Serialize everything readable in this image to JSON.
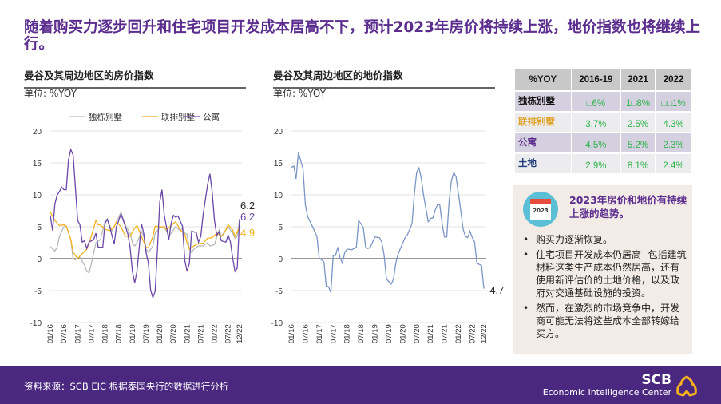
{
  "title": "随着购买力逐步回升和住宅项目开发成本居高不下，预计2023年房价将持续上涨，地价指数也将继续上行。",
  "chart_data": [
    {
      "type": "line",
      "title": "曼谷及其周边地区的房价指数",
      "unit": "单位: %YOY",
      "ylim": [
        -10,
        20
      ],
      "yticks": [
        20,
        15,
        10,
        5,
        0,
        -5,
        -10
      ],
      "xticks": [
        "01/16",
        "07/16",
        "01/17",
        "07/17",
        "01/18",
        "07/18",
        "01/19",
        "07/19",
        "01/20",
        "07/20",
        "01/21",
        "07/21",
        "01/22",
        "07/22",
        "12/22"
      ],
      "legend": "top",
      "grid": true,
      "series": [
        {
          "name": "独栋别墅",
          "color": "#b8b8b8",
          "end_label": "6.2",
          "x": [
            "01/16",
            "03/16",
            "04/16",
            "05/16",
            "07/16",
            "08/16",
            "10/16",
            "11/16",
            "12/16",
            "01/17",
            "02/17",
            "04/17",
            "05/17",
            "06/17",
            "07/17",
            "09/17",
            "11/17",
            "01/18",
            "02/18",
            "04/18",
            "06/18",
            "08/18",
            "10/18",
            "12/18",
            "01/19",
            "02/19",
            "03/19",
            "05/19",
            "06/19",
            "07/19",
            "08/19",
            "10/19",
            "11/19",
            "01/20",
            "03/20",
            "05/20",
            "06/20",
            "08/20",
            "10/20",
            "11/20",
            "12/20",
            "01/21",
            "02/21",
            "03/21",
            "04/21",
            "06/21",
            "08/21",
            "10/21",
            "11/21",
            "01/22",
            "03/22",
            "04/22",
            "05/22",
            "07/22",
            "09/22",
            "10/22",
            "11/22",
            "12/22"
          ],
          "values": [
            1.9,
            1.2,
            1.8,
            3.5,
            5,
            5.2,
            3,
            0,
            -0.2,
            0.2,
            0.2,
            -1,
            -2,
            -2.2,
            -0.8,
            2.5,
            3,
            5.8,
            6.2,
            4.3,
            5.7,
            7.3,
            5.2,
            4,
            2.5,
            2,
            2.5,
            4.2,
            3.5,
            1.5,
            1,
            2,
            4,
            4.8,
            5,
            3.5,
            4,
            5,
            4.4,
            4.8,
            4,
            3.8,
            1.5,
            1,
            1.5,
            2,
            2,
            2.5,
            2,
            2.2,
            4.5,
            3.5,
            4,
            5,
            4,
            3.2,
            3.5,
            6.2
          ]
        },
        {
          "name": "联排别墅",
          "color": "#f5b21d",
          "end_label": "4.9",
          "x": [
            "01/16",
            "03/16",
            "05/16",
            "07/16",
            "08/16",
            "10/16",
            "11/16",
            "01/17",
            "03/17",
            "05/17",
            "07/17",
            "09/17",
            "10/17",
            "11/17",
            "01/18",
            "03/18",
            "05/18",
            "06/18",
            "08/18",
            "10/18",
            "12/18",
            "02/19",
            "03/19",
            "05/19",
            "07/19",
            "08/19",
            "10/19",
            "11/19",
            "01/20",
            "03/20",
            "04/20",
            "06/20",
            "08/20",
            "10/20",
            "12/20",
            "01/21",
            "02/21",
            "04/21",
            "06/21",
            "08/21",
            "10/21",
            "12/21",
            "02/22",
            "04/22",
            "05/22",
            "07/22",
            "09/22",
            "10/22",
            "12/22"
          ],
          "values": [
            7.3,
            6,
            5.2,
            5.3,
            5.1,
            3,
            1,
            0,
            0.8,
            1.5,
            3.5,
            6,
            5.3,
            5.3,
            4.6,
            4.4,
            5,
            5.8,
            5,
            3.5,
            3.5,
            4.8,
            5.2,
            3.5,
            1.8,
            1.7,
            3.5,
            5.1,
            5,
            5,
            4.5,
            5.2,
            5.8,
            4.5,
            3.8,
            2.5,
            1.5,
            2,
            2.4,
            2.4,
            3.2,
            3.3,
            4,
            3.5,
            3.8,
            5.3,
            4.5,
            3.5,
            4.9
          ]
        },
        {
          "name": "公寓",
          "color": "#6b47a8",
          "end_label": "6.2",
          "x": [
            "01/16",
            "02/16",
            "03/16",
            "04/16",
            "05/16",
            "06/16",
            "07/16",
            "08/16",
            "09/16",
            "10/16",
            "11/16",
            "01/17",
            "02/17",
            "03/17",
            "04/17",
            "05/17",
            "06/17",
            "08/17",
            "09/17",
            "10/17",
            "12/17",
            "01/18",
            "02/18",
            "03/18",
            "05/18",
            "06/18",
            "08/18",
            "09/18",
            "11/18",
            "12/18",
            "01/19",
            "02/19",
            "03/19",
            "04/19",
            "05/19",
            "06/19",
            "07/19",
            "08/19",
            "09/19",
            "10/19",
            "11/19",
            "12/19",
            "01/20",
            "02/20",
            "03/20",
            "05/20",
            "06/20",
            "07/20",
            "08/20",
            "09/20",
            "11/20",
            "12/20",
            "01/21",
            "02/21",
            "03/21",
            "05/21",
            "06/21",
            "07/21",
            "08/21",
            "10/21",
            "11/21",
            "12/21",
            "01/22",
            "02/22",
            "03/22",
            "04/22",
            "06/22",
            "07/22",
            "08/22",
            "09/22",
            "10/22",
            "11/22",
            "12/22"
          ],
          "values": [
            6.8,
            4.4,
            8.5,
            10,
            10.5,
            11.2,
            10.8,
            10.8,
            15.5,
            17.1,
            16.2,
            6,
            5.3,
            2.6,
            2.8,
            1.6,
            2.6,
            3,
            4,
            1.8,
            1.8,
            5.5,
            6.2,
            5.1,
            2.3,
            5,
            7,
            6,
            3.9,
            1.8,
            -2,
            -3.8,
            -2,
            1.8,
            5.5,
            3.9,
            1,
            -0.7,
            -4.9,
            -6.1,
            -5.1,
            1.4,
            8.9,
            10.8,
            6.8,
            3,
            5.5,
            6.8,
            6.5,
            6.7,
            5.1,
            -0.3,
            -2,
            -0.7,
            4.3,
            4.1,
            2.6,
            3.5,
            6.8,
            11.6,
            13.3,
            10.5,
            6,
            3.7,
            4.2,
            2.8,
            2.6,
            3.7,
            2.6,
            0.1,
            -2,
            -1.5,
            6.2
          ]
        }
      ]
    },
    {
      "type": "line",
      "title": "曼谷及其周边地区的地价指数",
      "unit": "单位: %YOY",
      "ylim": [
        -10,
        20
      ],
      "yticks": [
        20,
        15,
        10,
        5,
        0,
        -5,
        -10
      ],
      "xticks": [
        "01/16",
        "07/16",
        "01/17",
        "07/17",
        "01/18",
        "07/18",
        "01/19",
        "07/19",
        "01/20",
        "07/20",
        "01/21",
        "07/21",
        "01/22",
        "07/22",
        "12/22"
      ],
      "grid": true,
      "series": [
        {
          "color": "#7b96c6",
          "end_label": "-4.7",
          "x": [
            "01/16",
            "02/16",
            "03/16",
            "04/16",
            "06/16",
            "07/16",
            "08/16",
            "10/16",
            "12/16",
            "01/17",
            "03/17",
            "04/17",
            "05/17",
            "06/17",
            "07/17",
            "08/17",
            "09/17",
            "10/17",
            "11/17",
            "12/17",
            "01/18",
            "03/18",
            "05/18",
            "06/18",
            "08/18",
            "09/18",
            "10/18",
            "11/18",
            "01/19",
            "03/19",
            "04/19",
            "05/19",
            "06/19",
            "08/19",
            "09/19",
            "10/19",
            "11/19",
            "12/19",
            "02/20",
            "03/20",
            "05/20",
            "06/20",
            "07/20",
            "08/20",
            "09/20",
            "10/20",
            "12/20",
            "01/21",
            "02/21",
            "03/21",
            "04/21",
            "05/21",
            "06/21",
            "07/21",
            "08/21",
            "09/21",
            "10/21",
            "11/21",
            "12/21",
            "02/22",
            "03/22",
            "04/22",
            "05/22",
            "06/22",
            "07/22",
            "08/22",
            "09/22",
            "11/22",
            "12/22"
          ],
          "values": [
            14.3,
            14.5,
            12.5,
            16.6,
            14.1,
            8.5,
            6.6,
            5.1,
            3.5,
            0.1,
            -0.5,
            -4.3,
            -4.4,
            -5.3,
            0.5,
            0.5,
            1.8,
            0.1,
            -0.7,
            1,
            1.5,
            1.4,
            1.8,
            6,
            4.9,
            1.8,
            1.6,
            1.8,
            3.4,
            3.3,
            2.6,
            0.5,
            -3.2,
            -4,
            -3.2,
            -0.7,
            0.75,
            1.6,
            3.3,
            3.7,
            5.5,
            10.1,
            13.5,
            14.2,
            12.6,
            9.9,
            5.8,
            6.3,
            6.4,
            7.6,
            8.5,
            8.4,
            5.5,
            3.4,
            3.4,
            8.9,
            12.2,
            13.5,
            12.8,
            7.6,
            4.7,
            3.5,
            3.3,
            4.3,
            3.3,
            2.6,
            -0.7,
            -1.1,
            -4.7
          ]
        }
      ]
    }
  ],
  "table": {
    "headers": [
      "%YOY",
      "2016-19",
      "2021",
      "2022"
    ],
    "rows": [
      {
        "label": "独栋别墅",
        "color": "#111111",
        "values": [
          "□6%",
          "1□8%",
          "□□1%"
        ]
      },
      {
        "label": "联排别墅",
        "color": "#e0a020",
        "values": [
          "3.7%",
          "2.5%",
          "4.3%"
        ]
      },
      {
        "label": "公寓",
        "color": "#5b2d8e",
        "values": [
          "4.5%",
          "5.2%",
          "2.3%"
        ]
      },
      {
        "label": "土地",
        "color": "#1f3a7a",
        "values": [
          "2.9%",
          "8.1%",
          "2.4%"
        ]
      }
    ]
  },
  "outlook": {
    "icon_label": "2023",
    "title": "2023年房价和地价有持续上涨的趋势。",
    "bullets": [
      "购买力逐渐恢复。",
      "住宅项目开发成本仍居高--包括建筑材料这类生产成本仍然居高，还有使用新评估价的土地价格，以及政府对交通基础设施的投资。",
      "然而，在激烈的市场竞争中，开发商可能无法将这些成本全部转嫁给买方。"
    ]
  },
  "footer": {
    "source": "资料来源：SCB EIC 根据泰国央行的数据进行分析",
    "brand": "SCB",
    "brand_sub": "Economic Intelligence Center"
  },
  "colors": {
    "title": "#5b2d8e",
    "footer": "#4b2880",
    "logo": "#f5b21d"
  }
}
